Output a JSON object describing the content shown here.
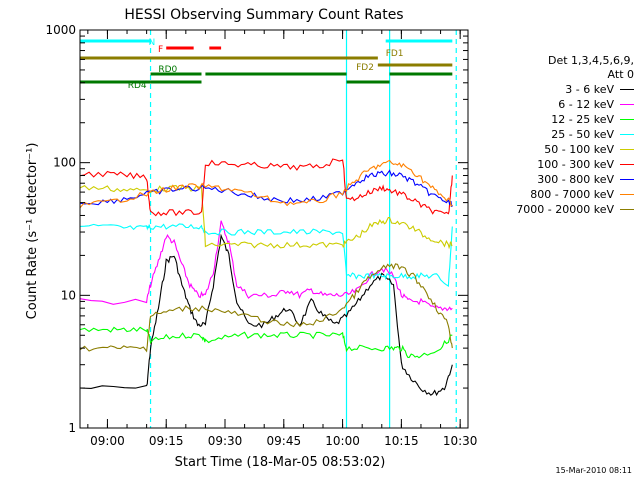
{
  "chart_data": {
    "type": "line",
    "title": "HESSI Observing Summary Count Rates",
    "xlabel": "Start Time (18-Mar-05 08:53:02)",
    "ylabel": "Count Rate (s⁻¹ detector⁻¹)",
    "xlim": [
      "08:53",
      "10:32"
    ],
    "ylim": [
      1,
      1000
    ],
    "yscale": "log",
    "x_ticks": [
      "09:00",
      "09:15",
      "09:30",
      "09:45",
      "10:00",
      "10:15",
      "10:30"
    ],
    "y_ticks": [
      "1",
      "10",
      "100",
      "1000"
    ],
    "legend_position": "right",
    "legend_header": [
      "Det 1,3,4,5,6,9,",
      "Att 0"
    ],
    "timestamp": "15-Mar-2010 08:11",
    "series": [
      {
        "name": "3 - 6 keV",
        "color": "#000000",
        "x": [
          "08:53",
          "09:10",
          "09:11",
          "09:13",
          "09:15",
          "09:17",
          "09:19",
          "09:21",
          "09:23",
          "09:25",
          "09:27",
          "09:29",
          "09:31",
          "09:33",
          "09:36",
          "09:40",
          "09:43",
          "09:46",
          "09:49",
          "09:52",
          "09:55",
          "09:58",
          "10:01",
          "10:04",
          "10:07",
          "10:10",
          "10:13",
          "10:15",
          "10:17",
          "10:20",
          "10:23",
          "10:26",
          "10:28"
        ],
        "y": [
          2,
          2,
          4,
          8,
          18,
          20,
          12,
          8,
          6,
          6,
          12,
          28,
          20,
          9,
          6,
          6,
          7,
          8,
          6,
          9,
          7,
          6,
          7,
          9,
          12,
          14,
          12,
          3,
          2.5,
          2,
          1.8,
          2,
          3
        ]
      },
      {
        "name": "6 - 12 keV",
        "color": "#ff00ff",
        "x": [
          "08:53",
          "09:10",
          "09:11",
          "09:13",
          "09:15",
          "09:17",
          "09:19",
          "09:21",
          "09:23",
          "09:25",
          "09:27",
          "09:29",
          "09:31",
          "09:33",
          "09:36",
          "09:40",
          "09:43",
          "09:46",
          "09:49",
          "09:52",
          "09:55",
          "09:58",
          "10:01",
          "10:04",
          "10:07",
          "10:10",
          "10:13",
          "10:15",
          "10:17",
          "10:20",
          "10:23",
          "10:26",
          "10:28"
        ],
        "y": [
          9,
          9,
          12,
          18,
          28,
          25,
          17,
          12,
          10,
          10,
          15,
          35,
          25,
          12,
          10,
          10,
          10,
          11,
          10,
          11,
          10,
          10,
          10,
          11,
          14,
          16,
          14,
          10,
          9,
          9,
          8,
          8,
          8
        ]
      },
      {
        "name": "12 - 25 keV",
        "color": "#00ff00",
        "x": [
          "08:53",
          "09:00",
          "09:05",
          "09:10",
          "09:11",
          "09:15",
          "09:20",
          "09:24",
          "09:25",
          "09:30",
          "09:35",
          "09:40",
          "09:45",
          "09:50",
          "09:55",
          "10:00",
          "10:01",
          "10:05",
          "10:10",
          "10:13",
          "10:15",
          "10:17",
          "10:20",
          "10:25",
          "10:28"
        ],
        "y": [
          5.5,
          5.5,
          5.5,
          5.5,
          4.5,
          4.8,
          5,
          5,
          4.5,
          4.8,
          5,
          5,
          5,
          5,
          5,
          5,
          4,
          4,
          4,
          4,
          4,
          3.5,
          3.5,
          4,
          5
        ]
      },
      {
        "name": "25 - 50 keV",
        "color": "#00ffff",
        "x": [
          "08:53",
          "09:00",
          "09:05",
          "09:10",
          "09:11",
          "09:15",
          "09:20",
          "09:24",
          "09:25",
          "09:30",
          "09:35",
          "09:40",
          "09:45",
          "09:50",
          "09:55",
          "10:00",
          "10:01",
          "10:04",
          "10:07",
          "10:10",
          "10:12",
          "10:15",
          "10:18",
          "10:21",
          "10:24",
          "10:27",
          "10:28"
        ],
        "y": [
          33,
          33,
          32,
          32,
          33,
          33,
          33,
          33,
          30,
          30,
          30,
          30,
          30,
          30,
          30,
          30,
          14,
          14,
          14,
          14,
          14,
          14,
          14,
          14,
          14,
          12,
          33
        ]
      },
      {
        "name": "50 - 100 keV",
        "color": "#cccc00",
        "x": [
          "08:53",
          "09:00",
          "09:05",
          "09:10",
          "09:15",
          "09:20",
          "09:24",
          "09:25",
          "09:30",
          "09:35",
          "09:40",
          "09:45",
          "09:50",
          "09:55",
          "10:00",
          "10:01",
          "10:04",
          "10:07",
          "10:10",
          "10:12",
          "10:15",
          "10:18",
          "10:21",
          "10:24",
          "10:27",
          "10:28"
        ],
        "y": [
          65,
          64,
          62,
          62,
          64,
          64,
          64,
          24,
          24,
          24,
          24,
          24,
          24,
          24,
          24,
          25,
          28,
          33,
          36,
          37,
          35,
          32,
          28,
          26,
          24,
          24
        ]
      },
      {
        "name": "100 - 300 keV",
        "color": "#ff0000",
        "x": [
          "08:53",
          "09:00",
          "09:05",
          "09:10",
          "09:11",
          "09:15",
          "09:20",
          "09:24",
          "09:25",
          "09:30",
          "09:35",
          "09:40",
          "09:45",
          "09:50",
          "09:55",
          "10:00",
          "10:01",
          "10:04",
          "10:07",
          "10:10",
          "10:12",
          "10:15",
          "10:18",
          "10:21",
          "10:24",
          "10:27",
          "10:28"
        ],
        "y": [
          82,
          82,
          80,
          78,
          42,
          42,
          42,
          42,
          100,
          98,
          96,
          95,
          93,
          92,
          95,
          110,
          52,
          55,
          60,
          65,
          62,
          58,
          52,
          46,
          42,
          40,
          80
        ]
      },
      {
        "name": "300 - 800 keV",
        "color": "#0000ff",
        "x": [
          "08:53",
          "09:00",
          "09:05",
          "09:10",
          "09:15",
          "09:20",
          "09:25",
          "09:30",
          "09:35",
          "09:40",
          "09:45",
          "09:50",
          "09:55",
          "10:00",
          "10:03",
          "10:06",
          "10:09",
          "10:12",
          "10:15",
          "10:18",
          "10:21",
          "10:24",
          "10:27",
          "10:28"
        ],
        "y": [
          50,
          51,
          54,
          58,
          62,
          64,
          64,
          62,
          58,
          54,
          52,
          52,
          54,
          60,
          70,
          78,
          82,
          83,
          80,
          72,
          62,
          55,
          50,
          48
        ]
      },
      {
        "name": "800 - 7000 keV",
        "color": "#ff8000",
        "x": [
          "08:53",
          "09:00",
          "09:05",
          "09:10",
          "09:15",
          "09:20",
          "09:25",
          "09:30",
          "09:35",
          "09:40",
          "09:45",
          "09:50",
          "09:55",
          "10:00",
          "10:03",
          "10:06",
          "10:09",
          "10:12",
          "10:15",
          "10:18",
          "10:21",
          "10:24",
          "10:27",
          "10:28"
        ],
        "y": [
          48,
          50,
          54,
          58,
          63,
          66,
          66,
          64,
          60,
          54,
          50,
          49,
          52,
          60,
          72,
          85,
          95,
          100,
          96,
          86,
          72,
          60,
          52,
          48
        ]
      },
      {
        "name": "7000 - 20000 keV",
        "color": "#8b7d00",
        "x": [
          "08:53",
          "09:00",
          "09:05",
          "09:10",
          "09:11",
          "09:15",
          "09:20",
          "09:25",
          "09:30",
          "09:35",
          "09:40",
          "09:45",
          "09:50",
          "09:55",
          "10:00",
          "10:03",
          "10:06",
          "10:09",
          "10:12",
          "10:15",
          "10:18",
          "10:21",
          "10:24",
          "10:27",
          "10:28"
        ],
        "y": [
          4,
          4,
          4,
          4,
          7,
          7.5,
          8,
          8,
          7.5,
          7,
          6.5,
          6,
          6,
          6.5,
          8,
          10,
          13,
          15,
          17,
          16,
          14,
          11,
          8,
          6,
          4
        ]
      }
    ],
    "flags": {
      "N": {
        "label": "N",
        "color": "#00ffff",
        "segments": [
          [
            "08:53",
            "09:11"
          ],
          [
            "10:11",
            "10:28"
          ]
        ]
      },
      "F": {
        "label": "F",
        "color": "#ff0000",
        "segments": [
          [
            "09:15",
            "09:22"
          ],
          [
            "09:26",
            "09:29"
          ]
        ]
      },
      "FD1": {
        "label": "FD1",
        "color": "#8b7d00",
        "segments": [
          [
            "08:53",
            "10:09"
          ]
        ]
      },
      "FD2": {
        "label": "FD2",
        "color": "#8b7d00",
        "segments": [
          [
            "10:09",
            "10:28"
          ]
        ]
      },
      "RD0": {
        "label": "RD0",
        "color": "#007800",
        "segments": [
          [
            "09:11",
            "09:24"
          ],
          [
            "09:25",
            "10:01"
          ],
          [
            "10:12",
            "10:28"
          ]
        ]
      },
      "RD4": {
        "label": "RD4",
        "color": "#007800",
        "segments": [
          [
            "08:53",
            "09:11"
          ],
          [
            "09:11",
            "09:24"
          ],
          [
            "10:01",
            "10:12"
          ]
        ]
      }
    },
    "vlines": [
      {
        "x": "09:11",
        "color": "#00ffff",
        "style": "dashed"
      },
      {
        "x": "10:01",
        "color": "#00ffff",
        "style": "solid"
      },
      {
        "x": "10:12",
        "color": "#00ffff",
        "style": "solid"
      },
      {
        "x": "10:29",
        "color": "#00ffff",
        "style": "dashed"
      }
    ]
  }
}
